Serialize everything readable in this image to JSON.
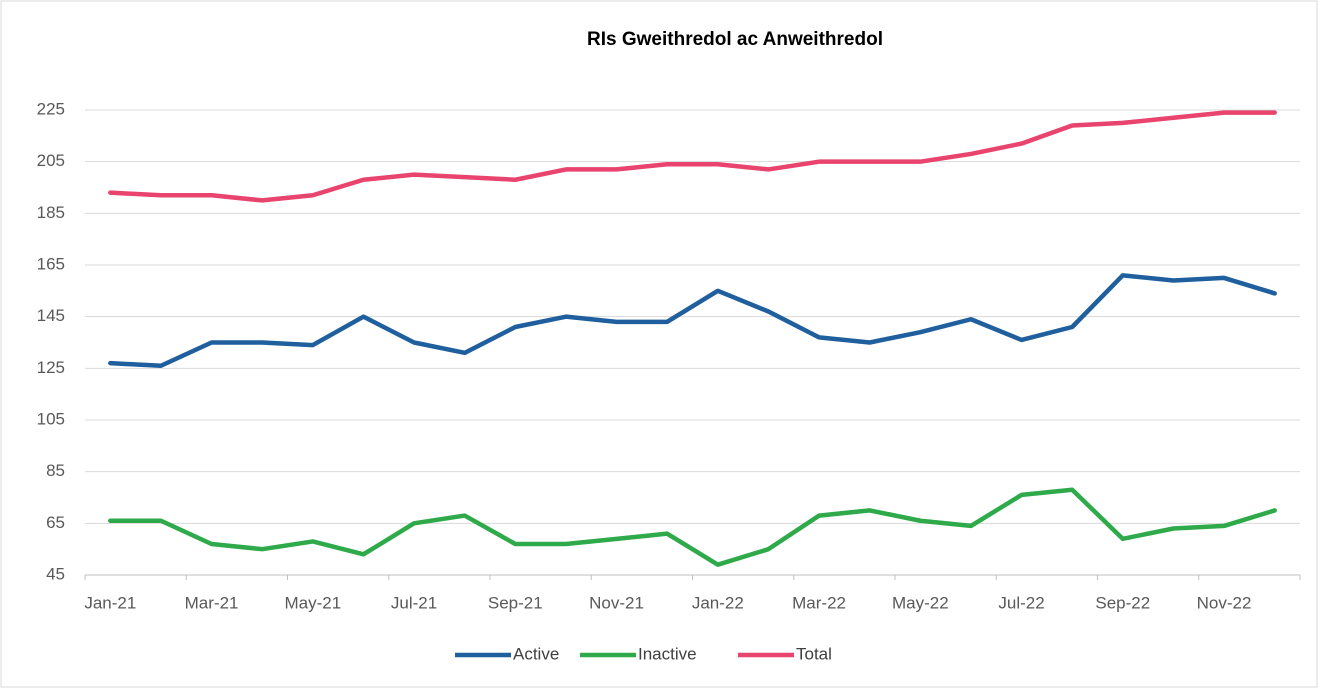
{
  "chart_data": {
    "type": "line",
    "title": "RIs Gweithredol ac Anweithredol",
    "categories": [
      "Jan-21",
      null,
      "Mar-21",
      null,
      "May-21",
      null,
      "Jul-21",
      null,
      "Sep-21",
      null,
      "Nov-21",
      null,
      "Jan-22",
      null,
      "Mar-22",
      null,
      "May-22",
      null,
      "Jul-22",
      null,
      "Sep-22",
      null,
      "Nov-22",
      null
    ],
    "series": [
      {
        "name": "Active",
        "color": "#1f5f9e",
        "values": [
          127,
          126,
          135,
          135,
          134,
          145,
          135,
          131,
          141,
          145,
          143,
          143,
          155,
          147,
          137,
          135,
          139,
          144,
          136,
          141,
          161,
          159,
          160,
          154
        ]
      },
      {
        "name": "Inactive",
        "color": "#2eaa4a",
        "values": [
          66,
          66,
          57,
          55,
          58,
          53,
          65,
          68,
          57,
          57,
          59,
          61,
          49,
          55,
          68,
          70,
          66,
          64,
          76,
          78,
          59,
          63,
          64,
          70
        ]
      },
      {
        "name": "Total",
        "color": "#e8446e",
        "values": [
          193,
          192,
          192,
          190,
          192,
          198,
          200,
          199,
          198,
          202,
          202,
          204,
          204,
          202,
          205,
          205,
          205,
          208,
          212,
          219,
          220,
          222,
          224,
          224
        ]
      }
    ],
    "ylim": [
      45,
      225
    ],
    "yticks": [
      45,
      65,
      85,
      105,
      125,
      145,
      165,
      185,
      205,
      225
    ],
    "grid": true,
    "legend": "bottom"
  }
}
